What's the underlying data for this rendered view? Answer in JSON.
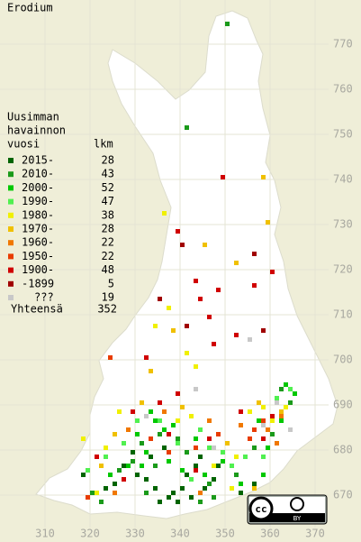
{
  "map": {
    "title": "Erodium",
    "xlim": [
      300,
      380
    ],
    "ylim": [
      660,
      780
    ],
    "xticks": [
      310,
      320,
      330,
      340,
      350,
      360,
      370
    ],
    "yticks": [
      670,
      680,
      690,
      700,
      710,
      720,
      730,
      740,
      750,
      760,
      770
    ],
    "legend": {
      "heading": [
        "Uusimman",
        "havainnon",
        "vuosi"
      ],
      "count_heading": "lkm",
      "total_label": "Yhteensä",
      "total": 352,
      "classes": [
        {
          "name": "2015-",
          "count": 28,
          "color": "#006400",
          "points": [
            [
              330,
              674
            ],
            [
              332,
              673
            ],
            [
              334,
              671
            ],
            [
              337,
              669
            ],
            [
              338,
              670
            ],
            [
              340,
              671
            ],
            [
              342,
              669
            ],
            [
              345,
              671
            ],
            [
              347,
              673
            ],
            [
              333,
              678
            ],
            [
              336,
              680
            ],
            [
              329,
              679
            ],
            [
              325,
              672
            ],
            [
              323,
              671
            ],
            [
              341,
              674
            ],
            [
              343,
              676
            ],
            [
              327,
              676
            ],
            [
              348,
              676
            ],
            [
              353,
              670
            ],
            [
              335,
              668
            ],
            [
              339,
              668
            ],
            [
              318,
              674
            ],
            [
              356,
              672
            ],
            [
              344,
              678
            ]
          ]
        },
        {
          "name": "2010-",
          "count": 43,
          "color": "#1a9a1a",
          "points": [
            [
              350,
              774
            ],
            [
              341,
              751
            ],
            [
              362,
              693
            ],
            [
              364,
              690
            ],
            [
              339,
              682
            ],
            [
              331,
              681
            ],
            [
              335,
              683
            ],
            [
              326,
              675
            ],
            [
              320,
              670
            ],
            [
              322,
              668
            ],
            [
              334,
              676
            ],
            [
              346,
              672
            ],
            [
              352,
              674
            ],
            [
              356,
              680
            ],
            [
              329,
              677
            ],
            [
              344,
              668
            ],
            [
              332,
              670
            ],
            [
              341,
              679
            ],
            [
              347,
              669
            ],
            [
              360,
              683
            ]
          ]
        },
        {
          "name": "2000-",
          "count": 52,
          "color": "#00c800",
          "points": [
            [
              363,
              694
            ],
            [
              365,
              692
            ],
            [
              362,
              686
            ],
            [
              336,
              684
            ],
            [
              338,
              685
            ],
            [
              330,
              683
            ],
            [
              328,
              676
            ],
            [
              331,
              676
            ],
            [
              343,
              682
            ],
            [
              345,
              674
            ],
            [
              349,
              677
            ],
            [
              353,
              672
            ],
            [
              358,
              674
            ],
            [
              332,
              679
            ],
            [
              337,
              677
            ],
            [
              340,
              675
            ],
            [
              324,
              674
            ],
            [
              357,
              686
            ],
            [
              334,
              686
            ],
            [
              333,
              688
            ],
            [
              359,
              680
            ]
          ]
        },
        {
          "name": "1990-",
          "count": 47,
          "color": "#50f050",
          "points": [
            [
              364,
              693
            ],
            [
              361,
              691
            ],
            [
              339,
              681
            ],
            [
              335,
              686
            ],
            [
              327,
              681
            ],
            [
              323,
              678
            ],
            [
              344,
              684
            ],
            [
              349,
              679
            ],
            [
              351,
              676
            ],
            [
              354,
              678
            ],
            [
              319,
              675
            ],
            [
              342,
              673
            ],
            [
              346,
              680
            ],
            [
              330,
              686
            ],
            [
              358,
              678
            ]
          ]
        },
        {
          "name": "1980-",
          "count": 38,
          "color": "#f0f000",
          "points": [
            [
              336,
              732
            ],
            [
              337,
              711
            ],
            [
              334,
              707
            ],
            [
              341,
              701
            ],
            [
              343,
              698
            ],
            [
              358,
              689
            ],
            [
              360,
              686
            ],
            [
              355,
              688
            ],
            [
              326,
              688
            ],
            [
              323,
              680
            ],
            [
              339,
              686
            ],
            [
              347,
              676
            ],
            [
              352,
              678
            ],
            [
              351,
              671
            ],
            [
              363,
              689
            ],
            [
              342,
              687
            ],
            [
              318,
              682
            ],
            [
              321,
              670
            ]
          ]
        },
        {
          "name": "1970-",
          "count": 28,
          "color": "#f0c000",
          "points": [
            [
              358,
              740
            ],
            [
              359,
              730
            ],
            [
              345,
              725
            ],
            [
              352,
              721
            ],
            [
              338,
              706
            ],
            [
              333,
              697
            ],
            [
              362,
              688
            ],
            [
              357,
              690
            ],
            [
              331,
              690
            ],
            [
              325,
              683
            ],
            [
              340,
              689
            ],
            [
              350,
              681
            ],
            [
              356,
              671
            ],
            [
              322,
              676
            ]
          ]
        },
        {
          "name": "1960-",
          "count": 22,
          "color": "#f07800",
          "points": [
            [
              362,
              687
            ],
            [
              359,
              684
            ],
            [
              346,
              686
            ],
            [
              336,
              688
            ],
            [
              328,
              684
            ],
            [
              353,
              685
            ],
            [
              325,
              670
            ],
            [
              344,
              670
            ],
            [
              361,
              681
            ]
          ]
        },
        {
          "name": "1950-",
          "count": 22,
          "color": "#e83c00",
          "points": [
            [
              358,
              686
            ],
            [
              356,
              684
            ],
            [
              343,
              680
            ],
            [
              333,
              682
            ],
            [
              355,
              682
            ],
            [
              319,
              669
            ],
            [
              348,
              683
            ],
            [
              337,
              679
            ],
            [
              324,
              700
            ]
          ]
        },
        {
          "name": "1900-",
          "count": 48,
          "color": "#d00000",
          "points": [
            [
              349,
              740
            ],
            [
              339,
              728
            ],
            [
              343,
              717
            ],
            [
              348,
              715
            ],
            [
              356,
              716
            ],
            [
              352,
              705
            ],
            [
              347,
              703
            ],
            [
              344,
              713
            ],
            [
              360,
              719
            ],
            [
              346,
              709
            ],
            [
              332,
              700
            ],
            [
              358,
              682
            ],
            [
              360,
              687
            ],
            [
              339,
              692
            ],
            [
              337,
              683
            ],
            [
              329,
              688
            ],
            [
              346,
              682
            ],
            [
              343,
              675
            ],
            [
              353,
              688
            ],
            [
              321,
              678
            ],
            [
              335,
              690
            ],
            [
              327,
              673
            ]
          ]
        },
        {
          "name": "-1899",
          "count": 5,
          "color": "#a00000",
          "points": [
            [
              356,
              723
            ],
            [
              358,
              706
            ],
            [
              335,
              713
            ],
            [
              341,
              707
            ],
            [
              340,
              725
            ]
          ]
        },
        {
          "name": "???",
          "count": 19,
          "color": "#c8c8c8",
          "points": [
            [
              355,
              704
            ],
            [
              361,
              690
            ],
            [
              343,
              693
            ],
            [
              358,
              685
            ],
            [
              347,
              680
            ],
            [
              332,
              687
            ],
            [
              364,
              684
            ]
          ]
        }
      ]
    },
    "badge": {
      "cc": "cc",
      "by": "BY"
    }
  }
}
